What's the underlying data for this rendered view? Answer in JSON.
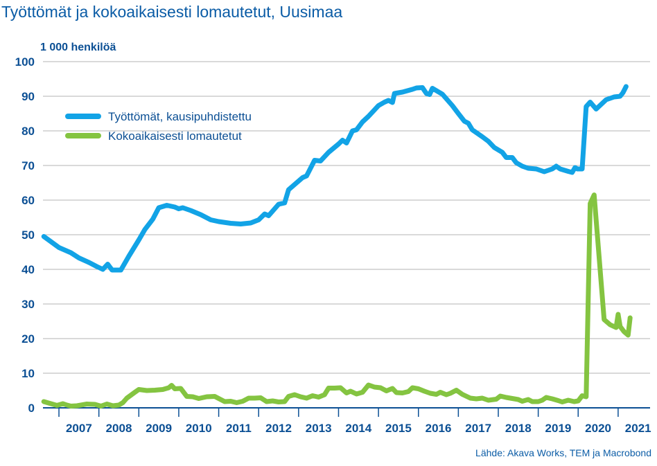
{
  "chart_data": {
    "type": "line",
    "title": "Työttömät ja kokoaikaisesti lomautetut, Uusimaa",
    "ylabel": "1 000 henkilöä",
    "source": "Lähde: Akava Works, TEM ja Macrobond",
    "ylim": [
      0,
      100
    ],
    "yticks": [
      "0",
      "10",
      "20",
      "30",
      "40",
      "50",
      "60",
      "70",
      "80",
      "90",
      "100"
    ],
    "xlim": [
      2006.6,
      2021.8
    ],
    "x_categories": [
      "2007",
      "2008",
      "2009",
      "2010",
      "2011",
      "2012",
      "2013",
      "2014",
      "2015",
      "2016",
      "2017",
      "2018",
      "2019",
      "2020",
      "2021"
    ],
    "legend_position": "top-left",
    "series": [
      {
        "name": "Työttömät, kausipuhdistettu",
        "color": "#12a3e6",
        "points": [
          [
            2006.62,
            49.5
          ],
          [
            2006.8,
            48
          ],
          [
            2007.0,
            46.3
          ],
          [
            2007.3,
            44.8
          ],
          [
            2007.5,
            43.3
          ],
          [
            2007.75,
            42
          ],
          [
            2007.95,
            40.8
          ],
          [
            2008.1,
            40
          ],
          [
            2008.22,
            41.5
          ],
          [
            2008.33,
            39.8
          ],
          [
            2008.55,
            39.8
          ],
          [
            2008.75,
            43.8
          ],
          [
            2009.0,
            48.5
          ],
          [
            2009.15,
            51.5
          ],
          [
            2009.35,
            54.5
          ],
          [
            2009.5,
            57.8
          ],
          [
            2009.7,
            58.5
          ],
          [
            2009.9,
            58
          ],
          [
            2010.0,
            57.5
          ],
          [
            2010.1,
            57.8
          ],
          [
            2010.3,
            57
          ],
          [
            2010.55,
            55.8
          ],
          [
            2010.8,
            54.3
          ],
          [
            2011.0,
            53.8
          ],
          [
            2011.3,
            53.3
          ],
          [
            2011.55,
            53.1
          ],
          [
            2011.8,
            53.4
          ],
          [
            2012.0,
            54.3
          ],
          [
            2012.15,
            56
          ],
          [
            2012.25,
            55.5
          ],
          [
            2012.5,
            58.8
          ],
          [
            2012.65,
            59.2
          ],
          [
            2012.75,
            63
          ],
          [
            2013.0,
            65.5
          ],
          [
            2013.1,
            66.5
          ],
          [
            2013.2,
            67
          ],
          [
            2013.4,
            71.5
          ],
          [
            2013.55,
            71.3
          ],
          [
            2013.75,
            73.8
          ],
          [
            2014.0,
            76.2
          ],
          [
            2014.1,
            77.3
          ],
          [
            2014.2,
            76.5
          ],
          [
            2014.35,
            80
          ],
          [
            2014.45,
            80.3
          ],
          [
            2014.6,
            82.6
          ],
          [
            2014.75,
            84.2
          ],
          [
            2015.0,
            87.3
          ],
          [
            2015.15,
            88.3
          ],
          [
            2015.25,
            88.8
          ],
          [
            2015.35,
            88.2
          ],
          [
            2015.4,
            90.8
          ],
          [
            2015.6,
            91.2
          ],
          [
            2015.85,
            92
          ],
          [
            2015.95,
            92.4
          ],
          [
            2016.1,
            92.5
          ],
          [
            2016.2,
            90.8
          ],
          [
            2016.28,
            90.5
          ],
          [
            2016.35,
            92.3
          ],
          [
            2016.6,
            90.6
          ],
          [
            2016.85,
            87.3
          ],
          [
            2017.0,
            85
          ],
          [
            2017.15,
            82.8
          ],
          [
            2017.25,
            82.2
          ],
          [
            2017.35,
            80.3
          ],
          [
            2017.6,
            78.3
          ],
          [
            2017.75,
            77
          ],
          [
            2017.9,
            75.2
          ],
          [
            2018.1,
            73.8
          ],
          [
            2018.2,
            72.3
          ],
          [
            2018.35,
            72.3
          ],
          [
            2018.45,
            70.8
          ],
          [
            2018.6,
            69.8
          ],
          [
            2018.75,
            69.2
          ],
          [
            2018.95,
            69
          ],
          [
            2019.15,
            68.2
          ],
          [
            2019.35,
            69
          ],
          [
            2019.45,
            69.8
          ],
          [
            2019.55,
            69
          ],
          [
            2019.75,
            68.3
          ],
          [
            2019.85,
            68
          ],
          [
            2019.92,
            69.4
          ],
          [
            2019.98,
            69
          ],
          [
            2020.1,
            69
          ],
          [
            2020.2,
            87
          ],
          [
            2020.3,
            88.3
          ],
          [
            2020.45,
            86.3
          ],
          [
            2020.7,
            89
          ],
          [
            2020.9,
            89.8
          ],
          [
            2021.05,
            90
          ],
          [
            2021.12,
            91
          ],
          [
            2021.2,
            92.8
          ]
        ]
      },
      {
        "name": "Kokoaikaisesti lomautetut",
        "color": "#84c441",
        "points": [
          [
            2006.62,
            1.8
          ],
          [
            2006.8,
            1.2
          ],
          [
            2006.95,
            0.7
          ],
          [
            2007.1,
            1.2
          ],
          [
            2007.2,
            0.8
          ],
          [
            2007.3,
            0.5
          ],
          [
            2007.45,
            0.6
          ],
          [
            2007.55,
            0.8
          ],
          [
            2007.7,
            1.1
          ],
          [
            2007.9,
            1
          ],
          [
            2008.05,
            0.5
          ],
          [
            2008.2,
            1.1
          ],
          [
            2008.35,
            0.6
          ],
          [
            2008.5,
            0.8
          ],
          [
            2008.6,
            1.5
          ],
          [
            2008.7,
            2.8
          ],
          [
            2008.9,
            4.5
          ],
          [
            2009.0,
            5.3
          ],
          [
            2009.2,
            5
          ],
          [
            2009.4,
            5.1
          ],
          [
            2009.6,
            5.3
          ],
          [
            2009.75,
            5.8
          ],
          [
            2009.82,
            6.5
          ],
          [
            2009.9,
            5.5
          ],
          [
            2010.05,
            5.6
          ],
          [
            2010.2,
            3.3
          ],
          [
            2010.35,
            3.2
          ],
          [
            2010.5,
            2.7
          ],
          [
            2010.7,
            3.2
          ],
          [
            2010.9,
            3.3
          ],
          [
            2011.15,
            1.8
          ],
          [
            2011.3,
            1.9
          ],
          [
            2011.45,
            1.5
          ],
          [
            2011.6,
            1.9
          ],
          [
            2011.75,
            2.8
          ],
          [
            2011.9,
            2.8
          ],
          [
            2012.05,
            2.9
          ],
          [
            2012.2,
            1.8
          ],
          [
            2012.35,
            2
          ],
          [
            2012.5,
            1.7
          ],
          [
            2012.65,
            1.8
          ],
          [
            2012.75,
            3.3
          ],
          [
            2012.9,
            3.8
          ],
          [
            2013.05,
            3.2
          ],
          [
            2013.2,
            2.8
          ],
          [
            2013.35,
            3.5
          ],
          [
            2013.5,
            3.1
          ],
          [
            2013.65,
            3.8
          ],
          [
            2013.75,
            5.7
          ],
          [
            2013.9,
            5.7
          ],
          [
            2014.05,
            5.8
          ],
          [
            2014.2,
            4.3
          ],
          [
            2014.3,
            4.8
          ],
          [
            2014.45,
            4
          ],
          [
            2014.6,
            4.5
          ],
          [
            2014.75,
            6.6
          ],
          [
            2014.9,
            6
          ],
          [
            2015.05,
            5.8
          ],
          [
            2015.2,
            4.9
          ],
          [
            2015.35,
            5.6
          ],
          [
            2015.45,
            4.4
          ],
          [
            2015.6,
            4.3
          ],
          [
            2015.75,
            4.7
          ],
          [
            2015.85,
            5.8
          ],
          [
            2016.0,
            5.5
          ],
          [
            2016.15,
            4.8
          ],
          [
            2016.3,
            4.2
          ],
          [
            2016.45,
            3.9
          ],
          [
            2016.55,
            4.5
          ],
          [
            2016.7,
            3.8
          ],
          [
            2016.8,
            4.2
          ],
          [
            2016.95,
            5.1
          ],
          [
            2017.1,
            3.9
          ],
          [
            2017.3,
            2.8
          ],
          [
            2017.45,
            2.6
          ],
          [
            2017.6,
            2.8
          ],
          [
            2017.75,
            2.2
          ],
          [
            2017.95,
            2.5
          ],
          [
            2018.05,
            3.4
          ],
          [
            2018.2,
            3
          ],
          [
            2018.35,
            2.7
          ],
          [
            2018.5,
            2.4
          ],
          [
            2018.6,
            1.9
          ],
          [
            2018.75,
            2.4
          ],
          [
            2018.85,
            1.8
          ],
          [
            2019.0,
            1.8
          ],
          [
            2019.1,
            2.2
          ],
          [
            2019.2,
            3
          ],
          [
            2019.35,
            2.6
          ],
          [
            2019.5,
            2.1
          ],
          [
            2019.6,
            1.7
          ],
          [
            2019.75,
            2.2
          ],
          [
            2019.9,
            1.8
          ],
          [
            2020.0,
            2
          ],
          [
            2020.1,
            3.5
          ],
          [
            2020.2,
            3.2
          ],
          [
            2020.3,
            59
          ],
          [
            2020.4,
            61.5
          ],
          [
            2020.65,
            25.5
          ],
          [
            2020.8,
            24
          ],
          [
            2020.95,
            23.2
          ],
          [
            2021.0,
            27
          ],
          [
            2021.05,
            23.5
          ],
          [
            2021.15,
            22
          ],
          [
            2021.25,
            21
          ],
          [
            2021.3,
            26
          ]
        ]
      }
    ]
  }
}
